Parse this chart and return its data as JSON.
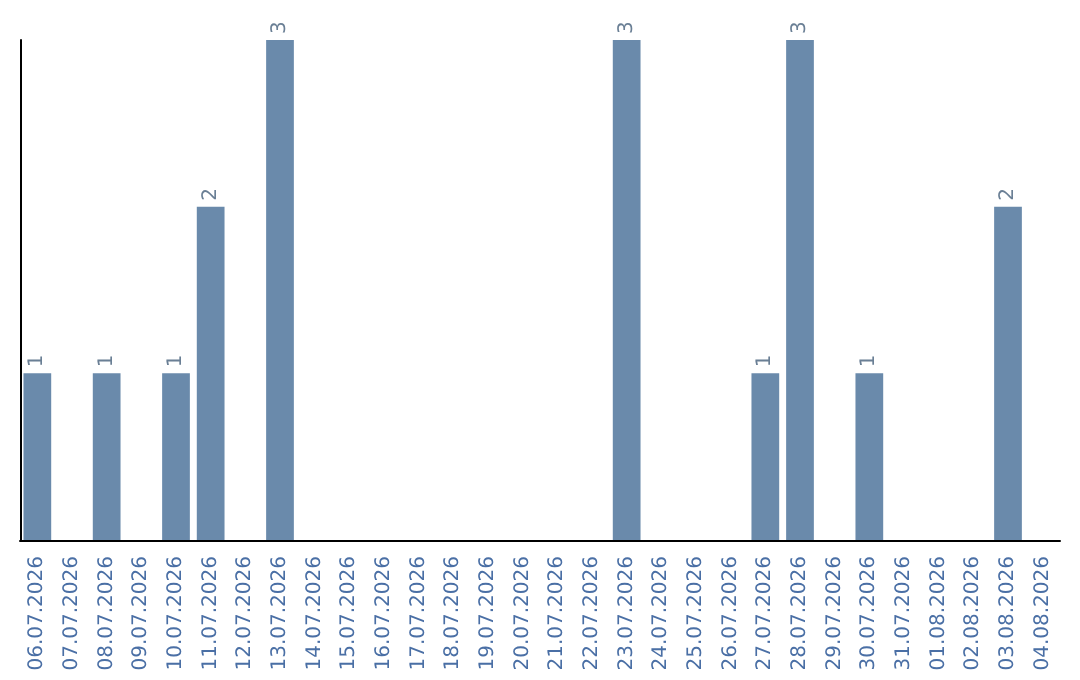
{
  "chart_data": {
    "type": "bar",
    "categories": [
      "06.07.2026",
      "07.07.2026",
      "08.07.2026",
      "09.07.2026",
      "10.07.2026",
      "11.07.2026",
      "12.07.2026",
      "13.07.2026",
      "14.07.2026",
      "15.07.2026",
      "16.07.2026",
      "17.07.2026",
      "18.07.2026",
      "19.07.2026",
      "20.07.2026",
      "21.07.2026",
      "22.07.2026",
      "23.07.2026",
      "24.07.2026",
      "25.07.2026",
      "26.07.2026",
      "27.07.2026",
      "28.07.2026",
      "29.07.2026",
      "30.07.2026",
      "31.07.2026",
      "01.08.2026",
      "02.08.2026",
      "03.08.2026",
      "04.08.2026"
    ],
    "values": [
      1,
      0,
      1,
      0,
      1,
      2,
      0,
      3,
      0,
      0,
      0,
      0,
      0,
      0,
      0,
      0,
      0,
      3,
      0,
      0,
      0,
      1,
      3,
      0,
      1,
      0,
      0,
      0,
      2,
      0
    ],
    "value_labels": [
      "1",
      null,
      "1",
      null,
      "1",
      "2",
      null,
      "3",
      null,
      null,
      null,
      null,
      null,
      null,
      null,
      null,
      null,
      "3",
      null,
      null,
      null,
      "1",
      "3",
      null,
      "1",
      null,
      null,
      null,
      "2",
      null
    ],
    "color": "#6a8aab",
    "grid": false,
    "tick_labels": "x"
  }
}
